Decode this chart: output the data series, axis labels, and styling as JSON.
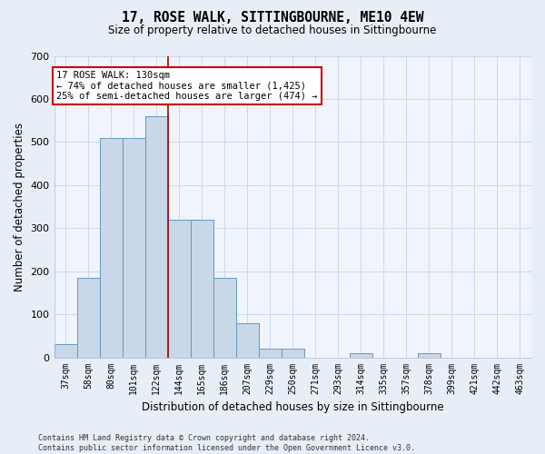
{
  "title": "17, ROSE WALK, SITTINGBOURNE, ME10 4EW",
  "subtitle": "Size of property relative to detached houses in Sittingbourne",
  "xlabel": "Distribution of detached houses by size in Sittingbourne",
  "ylabel": "Number of detached properties",
  "categories": [
    "37sqm",
    "58sqm",
    "80sqm",
    "101sqm",
    "122sqm",
    "144sqm",
    "165sqm",
    "186sqm",
    "207sqm",
    "229sqm",
    "250sqm",
    "271sqm",
    "293sqm",
    "314sqm",
    "335sqm",
    "357sqm",
    "378sqm",
    "399sqm",
    "421sqm",
    "442sqm",
    "463sqm"
  ],
  "values": [
    30,
    185,
    510,
    510,
    560,
    320,
    320,
    185,
    80,
    20,
    20,
    0,
    0,
    10,
    0,
    0,
    10,
    0,
    0,
    0,
    0
  ],
  "bar_color": "#c8d8e8",
  "bar_edge_color": "#6699bb",
  "grid_color": "#ccd8e8",
  "vline_color": "#aa0000",
  "vline_pos": 5.0,
  "annotation_text": "17 ROSE WALK: 130sqm\n← 74% of detached houses are smaller (1,425)\n25% of semi-detached houses are larger (474) →",
  "annotation_box_color": "#ffffff",
  "annotation_box_edge": "#cc0000",
  "ylim": [
    0,
    700
  ],
  "yticks": [
    0,
    100,
    200,
    300,
    400,
    500,
    600,
    700
  ],
  "footer": "Contains HM Land Registry data © Crown copyright and database right 2024.\nContains public sector information licensed under the Open Government Licence v3.0.",
  "bg_color": "#e8eef8",
  "plot_bg_color": "#f0f4fc"
}
